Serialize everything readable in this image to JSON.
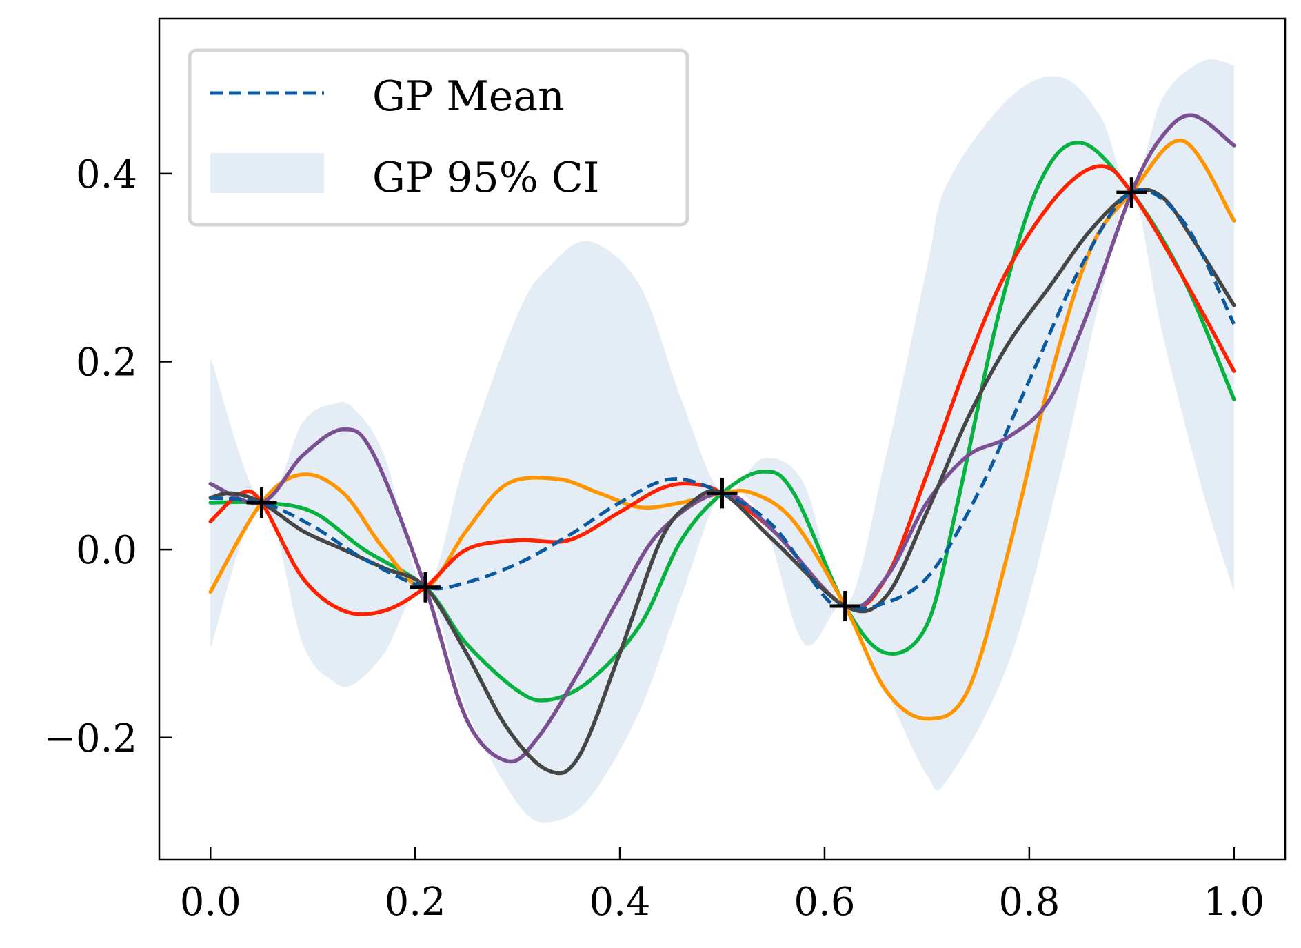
{
  "chart_data": {
    "type": "line",
    "title": "",
    "xlabel": "",
    "ylabel": "",
    "xlim": [
      -0.05,
      1.05
    ],
    "ylim": [
      -0.33,
      0.565
    ],
    "xticks": [
      0.0,
      0.2,
      0.4,
      0.6,
      0.8,
      1.0
    ],
    "xtick_labels": [
      "0.0",
      "0.2",
      "0.4",
      "0.6",
      "0.8",
      "1.0"
    ],
    "yticks": [
      -0.2,
      0.0,
      0.2,
      0.4
    ],
    "ytick_labels": [
      "−0.2",
      "0.0",
      "0.2",
      "0.4"
    ],
    "grid": false,
    "legend": {
      "placement": "top-left",
      "entries": [
        {
          "label": "GP Mean",
          "color": "#0b5aa0",
          "style": "dashed"
        },
        {
          "label": "GP 95% CI",
          "color": "#e4edf5",
          "style": "band"
        }
      ]
    },
    "observations": {
      "marker": "plus",
      "color": "#000000",
      "x": [
        0.05,
        0.21,
        0.5,
        0.62,
        0.9
      ],
      "y": [
        0.05,
        -0.04,
        0.06,
        -0.06,
        0.38
      ]
    },
    "mean": {
      "name": "GP Mean",
      "color": "#0b5aa0",
      "x": [
        0.0,
        0.05,
        0.1,
        0.15,
        0.21,
        0.25,
        0.3,
        0.35,
        0.4,
        0.45,
        0.5,
        0.55,
        0.6,
        0.62,
        0.65,
        0.7,
        0.75,
        0.8,
        0.85,
        0.9,
        0.95,
        1.0
      ],
      "y": [
        0.055,
        0.05,
        0.025,
        -0.01,
        -0.04,
        -0.035,
        -0.015,
        0.015,
        0.05,
        0.075,
        0.06,
        0.025,
        -0.05,
        -0.06,
        -0.06,
        -0.03,
        0.06,
        0.18,
        0.3,
        0.38,
        0.35,
        0.24
      ]
    },
    "confidence_band": {
      "name": "GP 95% CI",
      "color": "#e4edf5",
      "x": [
        0.0,
        0.05,
        0.09,
        0.12,
        0.14,
        0.17,
        0.21,
        0.25,
        0.3,
        0.33,
        0.37,
        0.42,
        0.46,
        0.5,
        0.54,
        0.58,
        0.62,
        0.66,
        0.7,
        0.72,
        0.78,
        0.83,
        0.87,
        0.9,
        0.93,
        0.97,
        1.0
      ],
      "lower": [
        -0.105,
        0.05,
        -0.1,
        -0.14,
        -0.143,
        -0.11,
        -0.04,
        -0.17,
        -0.27,
        -0.29,
        -0.265,
        -0.17,
        -0.05,
        0.06,
        0.03,
        -0.1,
        -0.06,
        -0.15,
        -0.24,
        -0.245,
        -0.12,
        0.08,
        0.27,
        0.38,
        0.23,
        0.06,
        -0.045
      ],
      "upper": [
        0.205,
        0.05,
        0.135,
        0.155,
        0.15,
        0.1,
        -0.04,
        0.1,
        0.25,
        0.3,
        0.328,
        0.28,
        0.16,
        0.06,
        0.097,
        0.07,
        -0.06,
        0.1,
        0.3,
        0.39,
        0.48,
        0.503,
        0.46,
        0.38,
        0.48,
        0.52,
        0.515
      ]
    },
    "samples": [
      {
        "color": "#07b240",
        "x": [
          0.0,
          0.05,
          0.1,
          0.15,
          0.21,
          0.25,
          0.3,
          0.33,
          0.37,
          0.42,
          0.46,
          0.5,
          0.54,
          0.57,
          0.62,
          0.66,
          0.7,
          0.73,
          0.77,
          0.81,
          0.85,
          0.9,
          0.95,
          1.0
        ],
        "y": [
          0.05,
          0.05,
          0.04,
          0.0,
          -0.04,
          -0.1,
          -0.15,
          -0.16,
          -0.14,
          -0.08,
          0.01,
          0.06,
          0.083,
          0.06,
          -0.06,
          -0.11,
          -0.08,
          0.05,
          0.25,
          0.39,
          0.433,
          0.38,
          0.29,
          0.16
        ]
      },
      {
        "color": "#ff9500",
        "x": [
          0.0,
          0.05,
          0.09,
          0.13,
          0.17,
          0.21,
          0.25,
          0.29,
          0.34,
          0.38,
          0.42,
          0.46,
          0.5,
          0.53,
          0.57,
          0.62,
          0.66,
          0.7,
          0.74,
          0.78,
          0.82,
          0.86,
          0.9,
          0.95,
          1.0
        ],
        "y": [
          -0.045,
          0.05,
          0.08,
          0.06,
          0.0,
          -0.04,
          0.02,
          0.07,
          0.075,
          0.06,
          0.045,
          0.05,
          0.06,
          0.06,
          0.03,
          -0.06,
          -0.15,
          -0.18,
          -0.15,
          0.0,
          0.18,
          0.32,
          0.38,
          0.435,
          0.35
        ]
      },
      {
        "color": "#ff2200",
        "x": [
          0.0,
          0.03,
          0.05,
          0.09,
          0.13,
          0.17,
          0.21,
          0.25,
          0.3,
          0.35,
          0.4,
          0.44,
          0.47,
          0.5,
          0.55,
          0.62,
          0.66,
          0.7,
          0.74,
          0.78,
          0.83,
          0.87,
          0.9,
          0.95,
          1.0
        ],
        "y": [
          0.03,
          0.06,
          0.05,
          -0.03,
          -0.065,
          -0.065,
          -0.04,
          0.0,
          0.01,
          0.01,
          0.04,
          0.065,
          0.07,
          0.06,
          0.02,
          -0.06,
          -0.03,
          0.08,
          0.2,
          0.3,
          0.38,
          0.408,
          0.38,
          0.29,
          0.19
        ]
      },
      {
        "color": "#7b5093",
        "x": [
          0.0,
          0.05,
          0.09,
          0.13,
          0.16,
          0.21,
          0.25,
          0.29,
          0.32,
          0.36,
          0.4,
          0.44,
          0.5,
          0.55,
          0.62,
          0.66,
          0.7,
          0.74,
          0.78,
          0.82,
          0.86,
          0.9,
          0.93,
          0.96,
          1.0
        ],
        "y": [
          0.07,
          0.05,
          0.1,
          0.128,
          0.1,
          -0.04,
          -0.18,
          -0.225,
          -0.2,
          -0.13,
          -0.05,
          0.02,
          0.06,
          0.02,
          -0.06,
          -0.03,
          0.05,
          0.1,
          0.12,
          0.16,
          0.26,
          0.38,
          0.44,
          0.462,
          0.43
        ]
      },
      {
        "color": "#464646",
        "x": [
          0.0,
          0.02,
          0.05,
          0.09,
          0.13,
          0.17,
          0.21,
          0.25,
          0.29,
          0.33,
          0.36,
          0.4,
          0.44,
          0.47,
          0.5,
          0.55,
          0.62,
          0.66,
          0.7,
          0.74,
          0.78,
          0.82,
          0.86,
          0.9,
          0.93,
          0.96,
          1.0
        ],
        "y": [
          0.055,
          0.06,
          0.05,
          0.02,
          0.0,
          -0.02,
          -0.04,
          -0.11,
          -0.19,
          -0.235,
          -0.22,
          -0.11,
          0.01,
          0.05,
          0.06,
          0.01,
          -0.06,
          -0.05,
          0.04,
          0.14,
          0.22,
          0.28,
          0.34,
          0.38,
          0.375,
          0.33,
          0.26
        ]
      }
    ]
  }
}
